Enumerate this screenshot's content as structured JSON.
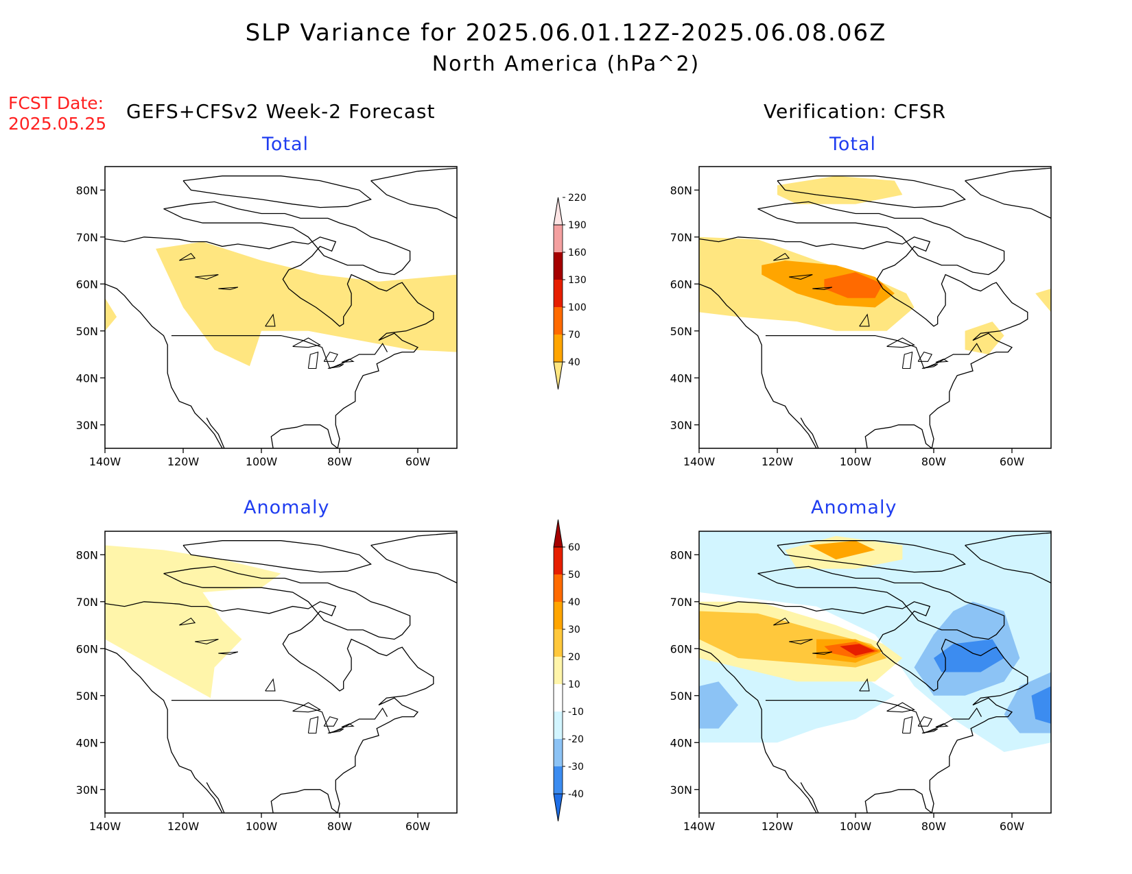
{
  "title": "SLP Variance for 2025.06.01.12Z-2025.06.08.06Z",
  "subtitle": "North America (hPa^2)",
  "fcst_date_label": "FCST Date:",
  "fcst_date_value": "2025.05.25",
  "left_column_title": "GEFS+CFSv2 Week-2 Forecast",
  "right_column_title": "Verification: CFSR",
  "panel_titles": {
    "top": "Total",
    "bottom": "Anomaly"
  },
  "axes": {
    "lat_labels": [
      "80N",
      "70N",
      "60N",
      "50N",
      "40N",
      "30N"
    ],
    "lon_labels": [
      "140W",
      "120W",
      "100W",
      "80W",
      "60W"
    ],
    "lat_range": [
      25,
      85
    ],
    "lon_range": [
      -140,
      -50
    ]
  },
  "colorbars": {
    "total": {
      "levels": [
        "40",
        "70",
        "100",
        "130",
        "160",
        "190",
        "220"
      ],
      "colors": [
        "#ffe680",
        "#ffa500",
        "#ff6a00",
        "#e61e00",
        "#a50000",
        "#f4a0a0",
        "#fde4e4"
      ]
    },
    "anomaly": {
      "levels": [
        "-40",
        "-30",
        "-20",
        "-10",
        "10",
        "20",
        "30",
        "40",
        "50",
        "60"
      ],
      "colors": [
        "#1e6ee6",
        "#3c8cf0",
        "#8cc3f5",
        "#d2f5ff",
        "#ffffff",
        "#fff5aa",
        "#ffc83c",
        "#ffa500",
        "#ff6a00",
        "#e61e00",
        "#a50000"
      ]
    }
  },
  "chart_data": [
    {
      "type": "heatmap",
      "panel": "GEFS+CFSv2 Week-2 Forecast - Total",
      "fields": [
        {
          "level": "40-70",
          "region": [
            [
              -127,
              67.5
            ],
            [
              -115,
              69
            ],
            [
              -100,
              65
            ],
            [
              -85,
              62
            ],
            [
              -70,
              60.5
            ],
            [
              -50,
              62
            ],
            [
              -50,
              45.5
            ],
            [
              -62,
              46
            ],
            [
              -75,
              48
            ],
            [
              -88,
              50
            ],
            [
              -100,
              50
            ],
            [
              -103,
              42.5
            ],
            [
              -112,
              46
            ],
            [
              -120,
              55
            ],
            [
              -127,
              67.5
            ]
          ]
        },
        {
          "level": "40-70",
          "region": [
            [
              -140,
              57
            ],
            [
              -137,
              53
            ],
            [
              -140,
              50
            ]
          ]
        }
      ]
    },
    {
      "type": "heatmap",
      "panel": "Verification: CFSR - Total",
      "fields": [
        {
          "level": "40-70",
          "region": [
            [
              -140,
              70
            ],
            [
              -125,
              69.5
            ],
            [
              -110,
              65
            ],
            [
              -95,
              61
            ],
            [
              -87,
              58
            ],
            [
              -85,
              55
            ],
            [
              -92,
              50
            ],
            [
              -105,
              50
            ],
            [
              -115,
              52
            ],
            [
              -130,
              53
            ],
            [
              -140,
              54
            ]
          ]
        },
        {
          "level": "40-70",
          "region": [
            [
              -120,
              81
            ],
            [
              -105,
              83
            ],
            [
              -90,
              82
            ],
            [
              -88,
              79
            ],
            [
              -100,
              77
            ],
            [
              -115,
              77
            ],
            [
              -120,
              79
            ]
          ]
        },
        {
          "level": "40-70",
          "region": [
            [
              -72,
              50
            ],
            [
              -65,
              52
            ],
            [
              -62,
              49
            ],
            [
              -66,
              45
            ],
            [
              -72,
              46
            ]
          ]
        },
        {
          "level": "40-70",
          "region": [
            [
              -54,
              58
            ],
            [
              -50,
              59
            ],
            [
              -50,
              54
            ]
          ]
        },
        {
          "level": "70-100",
          "region": [
            [
              -124,
              64
            ],
            [
              -118,
              65
            ],
            [
              -105,
              64
            ],
            [
              -95,
              61.5
            ],
            [
              -90,
              58
            ],
            [
              -95,
              55
            ],
            [
              -105,
              55.5
            ],
            [
              -115,
              58
            ],
            [
              -124,
              62
            ]
          ]
        },
        {
          "level": "100-130",
          "region": [
            [
              -108,
              61
            ],
            [
              -100,
              62.5
            ],
            [
              -93,
              60
            ],
            [
              -95,
              57
            ],
            [
              -102,
              57
            ],
            [
              -108,
              59
            ]
          ]
        }
      ]
    },
    {
      "type": "heatmap",
      "panel": "GEFS+CFSv2 Week-2 Forecast - Anomaly",
      "fields": [
        {
          "level": "10-20",
          "region": [
            [
              -140,
              82
            ],
            [
              -125,
              81
            ],
            [
              -110,
              79
            ],
            [
              -95,
              76
            ],
            [
              -100,
              73
            ],
            [
              -115,
              72
            ],
            [
              -110,
              66
            ],
            [
              -105,
              62
            ],
            [
              -112,
              56
            ],
            [
              -113,
              49.5
            ],
            [
              -125,
              55
            ],
            [
              -140,
              62
            ]
          ]
        }
      ]
    },
    {
      "type": "heatmap",
      "panel": "Verification: CFSR - Anomaly",
      "fields": [
        {
          "level": "-20 to -10",
          "region": [
            [
              -140,
              86
            ],
            [
              -50,
              86
            ],
            [
              -50,
              40
            ],
            [
              -62,
              38
            ],
            [
              -75,
              45
            ],
            [
              -85,
              52
            ],
            [
              -90,
              58
            ],
            [
              -95,
              63
            ],
            [
              -110,
              69
            ],
            [
              -140,
              72
            ]
          ]
        },
        {
          "level": "-20 to -10",
          "region": [
            [
              -140,
              60
            ],
            [
              -120,
              57
            ],
            [
              -100,
              55
            ],
            [
              -90,
              50
            ],
            [
              -100,
              45
            ],
            [
              -110,
              43
            ],
            [
              -120,
              40
            ],
            [
              -140,
              40
            ]
          ]
        },
        {
          "level": "-30 to -20",
          "region": [
            [
              -70,
              70
            ],
            [
              -62,
              68
            ],
            [
              -58,
              58
            ],
            [
              -62,
              53
            ],
            [
              -72,
              50
            ],
            [
              -80,
              50
            ],
            [
              -85,
              56
            ],
            [
              -80,
              63
            ],
            [
              -75,
              68
            ]
          ]
        },
        {
          "level": "-30 to -20",
          "region": [
            [
              -50,
              55
            ],
            [
              -58,
              52
            ],
            [
              -62,
              46
            ],
            [
              -58,
              42
            ],
            [
              -50,
              42
            ]
          ]
        },
        {
          "level": "-30 to -20",
          "region": [
            [
              -140,
              52
            ],
            [
              -135,
              53
            ],
            [
              -130,
              48
            ],
            [
              -135,
              43
            ],
            [
              -140,
              43
            ]
          ]
        },
        {
          "level": "-40 to -30",
          "region": [
            [
              -75,
              61
            ],
            [
              -65,
              62
            ],
            [
              -62,
              58
            ],
            [
              -68,
              55
            ],
            [
              -78,
              55
            ],
            [
              -80,
              58
            ]
          ]
        },
        {
          "level": "-40 to -30",
          "region": [
            [
              -50,
              52
            ],
            [
              -55,
              50
            ],
            [
              -54,
              45
            ],
            [
              -50,
              44
            ]
          ]
        },
        {
          "level": "10-20",
          "region": [
            [
              -140,
              70
            ],
            [
              -125,
              70
            ],
            [
              -105,
              65
            ],
            [
              -93,
              61
            ],
            [
              -88,
              58
            ],
            [
              -95,
              53
            ],
            [
              -115,
              53
            ],
            [
              -130,
              56
            ],
            [
              -140,
              58
            ]
          ]
        },
        {
          "level": "10-20",
          "region": [
            [
              -118,
              81
            ],
            [
              -105,
              84
            ],
            [
              -88,
              82
            ],
            [
              -88,
              79
            ],
            [
              -100,
              77
            ],
            [
              -115,
              77
            ]
          ]
        },
        {
          "level": "20-30",
          "region": [
            [
              -140,
              68
            ],
            [
              -125,
              67.5
            ],
            [
              -110,
              64
            ],
            [
              -96,
              61
            ],
            [
              -92,
              58
            ],
            [
              -100,
              56
            ],
            [
              -115,
              57
            ],
            [
              -130,
              58
            ],
            [
              -140,
              62
            ]
          ]
        },
        {
          "level": "30-40",
          "region": [
            [
              -110,
              62
            ],
            [
              -100,
              62
            ],
            [
              -93,
              59.5
            ],
            [
              -100,
              57
            ],
            [
              -110,
              58
            ]
          ]
        },
        {
          "level": "30-40",
          "region": [
            [
              -112,
              82
            ],
            [
              -100,
              83
            ],
            [
              -95,
              81
            ],
            [
              -105,
              79
            ]
          ]
        },
        {
          "level": "40-50",
          "region": [
            [
              -108,
              60.5
            ],
            [
              -100,
              61.5
            ],
            [
              -94,
              59.5
            ],
            [
              -100,
              58
            ],
            [
              -106,
              59
            ]
          ]
        },
        {
          "level": "50-60",
          "region": [
            [
              -104,
              60.5
            ],
            [
              -99,
              61
            ],
            [
              -95,
              59.5
            ],
            [
              -100,
              58.5
            ]
          ]
        }
      ]
    }
  ]
}
